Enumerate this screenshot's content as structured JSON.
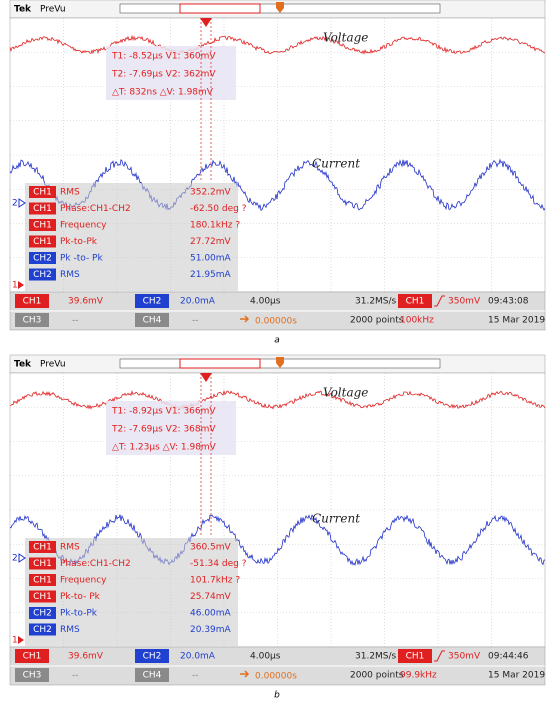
{
  "panels": [
    {
      "caption": "a",
      "header": {
        "brand": "Tek",
        "mode": "PreVu"
      },
      "waveform_labels": [
        "Voltage",
        "Current"
      ],
      "channel_markers": [
        "2",
        "1"
      ],
      "cursor_readout": [
        "T1: -8.52µs V1: 360mV",
        "T2: -7.69µs V2: 362mV",
        "△T: 832ns △V: 1.98mV"
      ],
      "measurements": [
        {
          "channel": "CH1",
          "color": "#e02020",
          "name": "RMS",
          "value": "352.2mV"
        },
        {
          "channel": "CH1",
          "color": "#e02020",
          "name": "Phase:CH1-CH2",
          "value": "-62.50 deg ?"
        },
        {
          "channel": "CH1",
          "color": "#e02020",
          "name": "Frequency",
          "value": "180.1kHz ?"
        },
        {
          "channel": "CH1",
          "color": "#e02020",
          "name": "Pk-to-Pk",
          "value": "27.72mV"
        },
        {
          "channel": "CH2",
          "color": "#2040d0",
          "name": "Pk -to- Pk",
          "value": "51.00mA"
        },
        {
          "channel": "CH2",
          "color": "#2040d0",
          "name": "RMS",
          "value": "21.95mA"
        }
      ],
      "status": {
        "ch1": "CH1",
        "ch1_scale": "39.6mV",
        "ch2": "CH2",
        "ch2_scale": "20.0mA",
        "ch3": "CH3",
        "ch3_scale": "--",
        "ch4": "CH4",
        "ch4_scale": "--",
        "timebase": "4.00µs",
        "sample_rate": "31.2MS/s",
        "position": "0.00000s",
        "record_length": "2000 points",
        "trigger_channel": "CH1",
        "trigger_level": "350mV",
        "trigger_frequency": "100kHz",
        "time": "09:43:08",
        "date": "15 Mar 2019"
      }
    },
    {
      "caption": "b",
      "header": {
        "brand": "Tek",
        "mode": "PreVu"
      },
      "waveform_labels": [
        "Voltage",
        "Current"
      ],
      "channel_markers": [
        "2",
        "1"
      ],
      "cursor_readout": [
        "T1: -8.92µs V1: 366mV",
        "T2: -7.69µs V2: 368mV",
        "△T: 1.23µs △V: 1.98mV"
      ],
      "measurements": [
        {
          "channel": "CH1",
          "color": "#e02020",
          "name": "RMS",
          "value": "360.5mV"
        },
        {
          "channel": "CH1",
          "color": "#e02020",
          "name": "Phase:CH1-CH2",
          "value": "-51.34 deg ?"
        },
        {
          "channel": "CH1",
          "color": "#e02020",
          "name": "Frequency",
          "value": "101.7kHz ?"
        },
        {
          "channel": "CH1",
          "color": "#e02020",
          "name": "Pk-to- Pk",
          "value": "25.74mV"
        },
        {
          "channel": "CH2",
          "color": "#2040d0",
          "name": "Pk-to-Pk",
          "value": "46.00mA"
        },
        {
          "channel": "CH2",
          "color": "#2040d0",
          "name": "RMS",
          "value": "20.39mA"
        }
      ],
      "status": {
        "ch1": "CH1",
        "ch1_scale": "39.6mV",
        "ch2": "CH2",
        "ch2_scale": "20.0mA",
        "ch3": "CH3",
        "ch3_scale": "--",
        "ch4": "CH4",
        "ch4_scale": "--",
        "timebase": "4.00µs",
        "sample_rate": "31.2MS/s",
        "position": "0.00000s",
        "record_length": "2000 points",
        "trigger_channel": "CH1",
        "trigger_level": "350mV",
        "trigger_frequency": "99.9kHz",
        "time": "09:44:46",
        "date": "15 Mar 2019"
      }
    }
  ]
}
